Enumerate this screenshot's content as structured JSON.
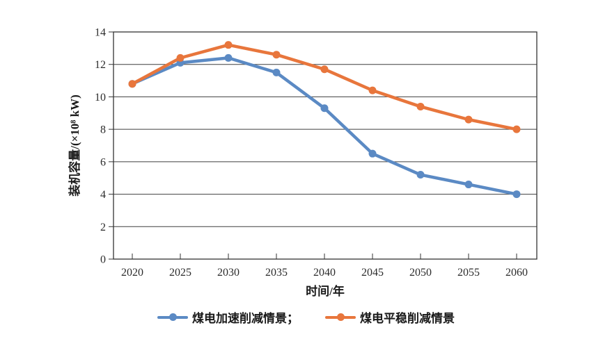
{
  "chart_data": {
    "type": "line",
    "title": "",
    "categories": [
      "2020",
      "2025",
      "2030",
      "2035",
      "2040",
      "2045",
      "2050",
      "2055",
      "2060"
    ],
    "series": [
      {
        "name": "煤电加速削减情景",
        "color": "#5B8AC4",
        "values": [
          10.8,
          12.1,
          12.4,
          11.5,
          9.3,
          6.5,
          5.2,
          4.6,
          4.0
        ]
      },
      {
        "name": "煤电平稳削减情景",
        "color": "#E8763C",
        "values": [
          10.8,
          12.4,
          13.2,
          12.6,
          11.7,
          10.4,
          9.4,
          8.6,
          8.0
        ]
      }
    ],
    "xlabel": "时间/年",
    "ylabel": "装机容量/(×10⁸ kW)",
    "ylim": [
      0,
      14
    ],
    "ytick_step": 2,
    "ytick_labels": [
      "0",
      "2",
      "4",
      "6",
      "8",
      "10",
      "12",
      "14"
    ],
    "grid": "horizontal-only",
    "plot_border": true,
    "legend_position": "bottom",
    "axis_color": "#333333",
    "gridline_color": "#3f3f3f",
    "tick_label_color": "#2b2b2b"
  },
  "legend": {
    "items": [
      {
        "label": "煤电加速削减情景；",
        "color": "#5B8AC4"
      },
      {
        "label": "煤电平稳削减情景",
        "color": "#E8763C"
      }
    ]
  }
}
